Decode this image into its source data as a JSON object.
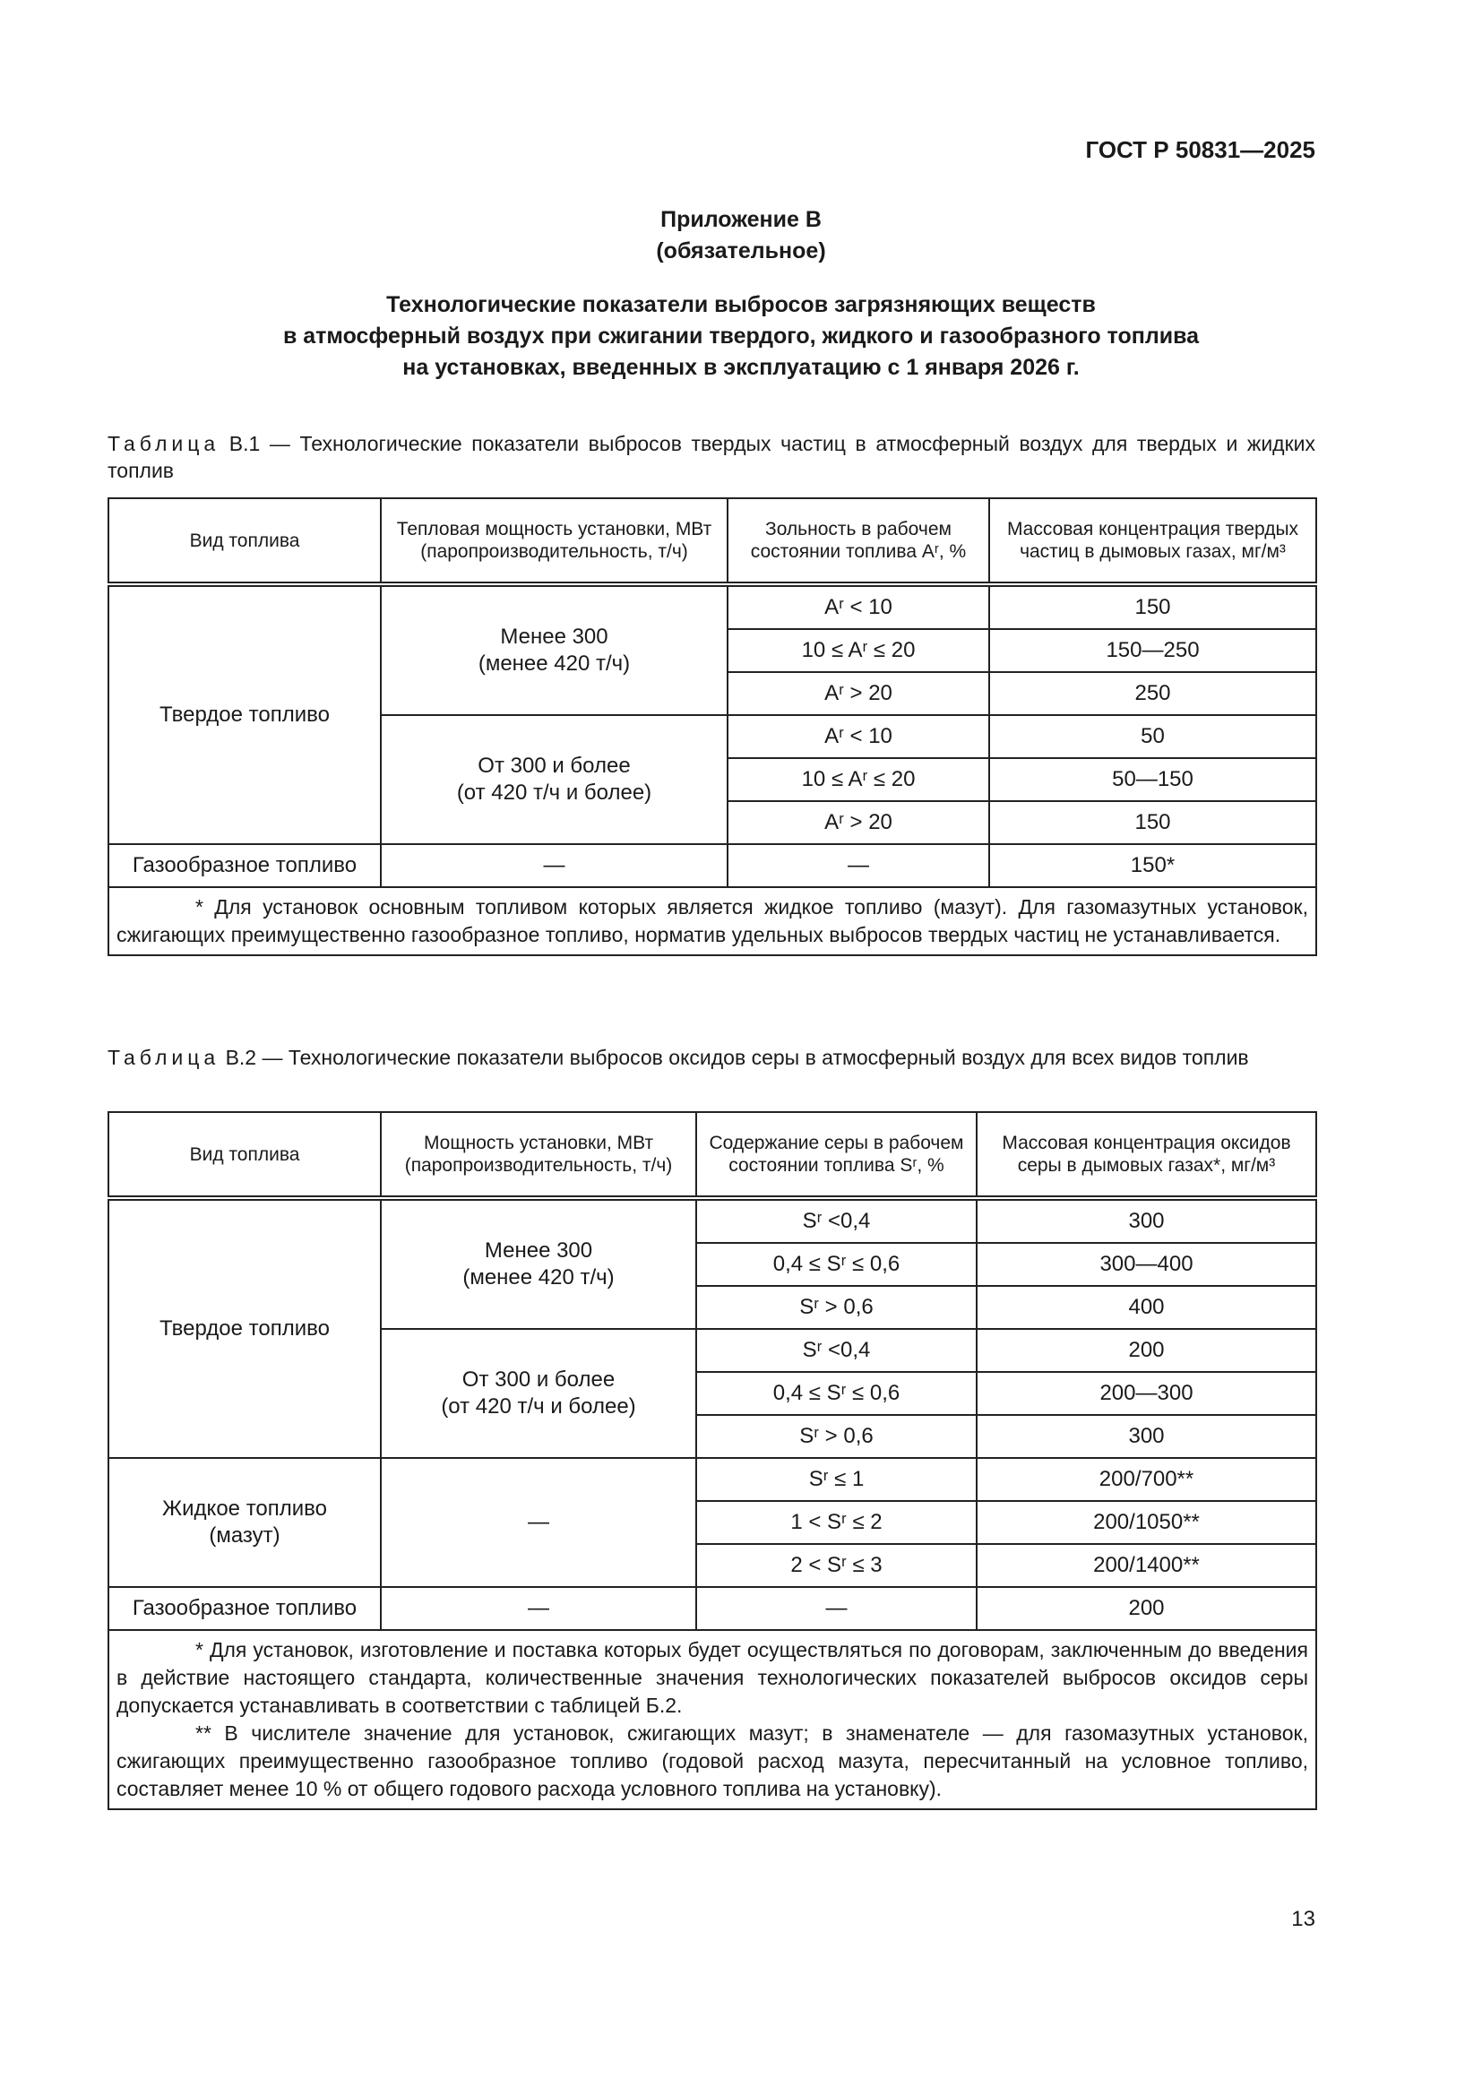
{
  "header": {
    "doc_id": "ГОСТ Р 50831—2025"
  },
  "appendix": {
    "title": "Приложение В",
    "status": "(обязательное)"
  },
  "heading": [
    "Технологические показатели выбросов загрязняющих веществ",
    "в атмосферный воздух при сжигании твердого, жидкого и газообразного топлива",
    "на установках, введенных в эксплуатацию с 1 января 2026 г."
  ],
  "table1": {
    "caption_label": "Таблица",
    "caption_text": " В.1 — Технологические показатели выбросов твердых частиц в атмосферный воздух для твердых и жидких топлив",
    "headers": [
      "Вид топлива",
      "Тепловая мощность установки, МВт (паропроизводительность, т/ч)",
      "Зольность в рабочем состоянии топлива Aʳ, %",
      "Массовая концентрация твердых частиц в дымовых газах, мг/м³"
    ],
    "solid_label": "Твердое топливо",
    "groups": [
      {
        "power": "Менее 300",
        "steam": "(менее 420 т/ч)",
        "rows": [
          [
            "Aʳ < 10",
            "150"
          ],
          [
            "10 ≤ Aʳ ≤ 20",
            "150—250"
          ],
          [
            "Aʳ > 20",
            "250"
          ]
        ]
      },
      {
        "power": "От 300 и более",
        "steam": "(от 420 т/ч и более)",
        "rows": [
          [
            "Aʳ < 10",
            "50"
          ],
          [
            "10 ≤ Aʳ ≤ 20",
            "50—150"
          ],
          [
            "Aʳ > 20",
            "150"
          ]
        ]
      }
    ],
    "gas": [
      "Газообразное топливо",
      "—",
      "—",
      "150*"
    ],
    "notes": [
      "* Для установок основным топливом которых является жидкое топливо (мазут). Для газомазутных установок, сжигающих преимущественно газообразное топливо, норматив удельных выбросов твердых частиц не устанавливается."
    ]
  },
  "table2": {
    "caption_label": "Таблица",
    "caption_text": " В.2 — Технологические показатели выбросов оксидов серы в атмосферный воздух для всех видов топлив",
    "headers": [
      "Вид топлива",
      "Мощность установки, МВт (паропроизводительность, т/ч)",
      "Содержание серы в рабочем состоянии топлива Sʳ, %",
      "Массовая концентрация оксидов серы в дымовых газах*, мг/м³"
    ],
    "solid_label": "Твердое топливо",
    "groups": [
      {
        "power": "Менее 300",
        "steam": "(менее 420 т/ч)",
        "rows": [
          [
            "Sʳ <0,4",
            "300"
          ],
          [
            "0,4 ≤ Sʳ ≤ 0,6",
            "300—400"
          ],
          [
            "Sʳ > 0,6",
            "400"
          ]
        ]
      },
      {
        "power": "От 300 и более",
        "steam": "(от 420 т/ч и более)",
        "rows": [
          [
            "Sʳ <0,4",
            "200"
          ],
          [
            "0,4 ≤ Sʳ ≤ 0,6",
            "200—300"
          ],
          [
            "Sʳ > 0,6",
            "300"
          ]
        ]
      }
    ],
    "liquid": {
      "label": "Жидкое топливо",
      "sub": "(мазут)",
      "power": "—",
      "rows": [
        [
          "Sʳ ≤ 1",
          "200/700**"
        ],
        [
          "1 < Sʳ ≤ 2",
          "200/1050**"
        ],
        [
          "2 < Sʳ ≤ 3",
          "200/1400**"
        ]
      ]
    },
    "gas": [
      "Газообразное топливо",
      "—",
      "—",
      "200"
    ],
    "notes": [
      "* Для установок, изготовление и поставка которых будет осуществляться по договорам, заключенным до введения в действие настоящего стандарта, количественные значения технологических показателей выбросов оксидов серы допускается устанавливать в соответствии с таблицей Б.2.",
      "** В числителе значение для установок, сжигающих мазут; в знаменателе — для газомазутных установок, сжигающих преимущественно газообразное топливо (годовой расход мазута, пересчитанный на условное топливо, составляет менее 10 % от общего годового расхода условного топлива на установку)."
    ]
  },
  "page_number": "13"
}
